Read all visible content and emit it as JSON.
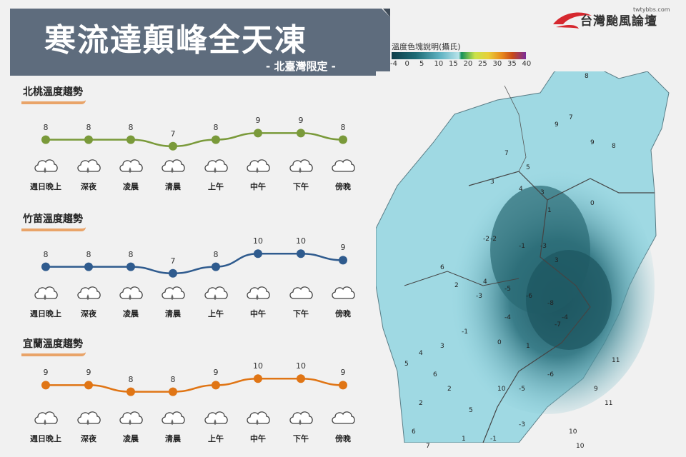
{
  "header": {
    "title": "寒流達顛峰全天凍",
    "subtitle": "- 北臺灣限定 -"
  },
  "brand": {
    "url": "twtybbs.com",
    "name": "台灣颱風論壇"
  },
  "legend": {
    "title": "溫度色塊說明(攝氏)",
    "ticks": [
      "-4",
      "0",
      "5",
      "10",
      "15",
      "20",
      "25",
      "30",
      "35",
      "40"
    ]
  },
  "periods": [
    "週日晚上",
    "深夜",
    "凌晨",
    "清晨",
    "上午",
    "中午",
    "下午",
    "傍晚"
  ],
  "panels": [
    {
      "title": "北桃溫度趨勢",
      "color": "#7a9a3a",
      "temps": [
        8,
        8,
        8,
        7,
        8,
        9,
        9,
        8
      ],
      "icons": [
        "cloud-rain",
        "cloud-rain",
        "cloud-rain",
        "cloud-rain",
        "cloud-rain",
        "cloud-rain",
        "cloud-rain",
        "cloud"
      ]
    },
    {
      "title": "竹苗溫度趨勢",
      "color": "#2f5b8e",
      "temps": [
        8,
        8,
        8,
        7,
        8,
        10,
        10,
        9
      ],
      "icons": [
        "cloud-rain",
        "cloud-rain",
        "cloud-rain",
        "cloud-rain",
        "cloud-rain",
        "cloud-rain",
        "cloud",
        "cloud"
      ]
    },
    {
      "title": "宜蘭溫度趨勢",
      "color": "#e07515",
      "temps": [
        9,
        9,
        8,
        8,
        9,
        10,
        10,
        9
      ],
      "icons": [
        "cloud-rain",
        "cloud-rain",
        "cloud-rain",
        "cloud-rain",
        "cloud-rain",
        "cloud-rain",
        "cloud-rain",
        "cloud"
      ]
    }
  ],
  "map": {
    "labels": [
      "8",
      "7",
      "9",
      "9",
      "8",
      "7",
      "5",
      "3",
      "4",
      "3",
      "1",
      "0",
      "-2",
      "-1",
      "3",
      "6",
      "2",
      "-3",
      "-5",
      "-6",
      "-8",
      "-4",
      "-7",
      "-1",
      "3",
      "0",
      "1",
      "4",
      "5",
      "6",
      "2",
      "10",
      "11",
      "9",
      "10",
      "11",
      "10",
      "-2",
      "-3",
      "4",
      "-4",
      "-6",
      "-5",
      "2",
      "5",
      "7",
      "6",
      "-1",
      "-3",
      "1"
    ]
  },
  "colors": {
    "banner": "#5e6c7d",
    "accent_underline": "#e9a469"
  }
}
